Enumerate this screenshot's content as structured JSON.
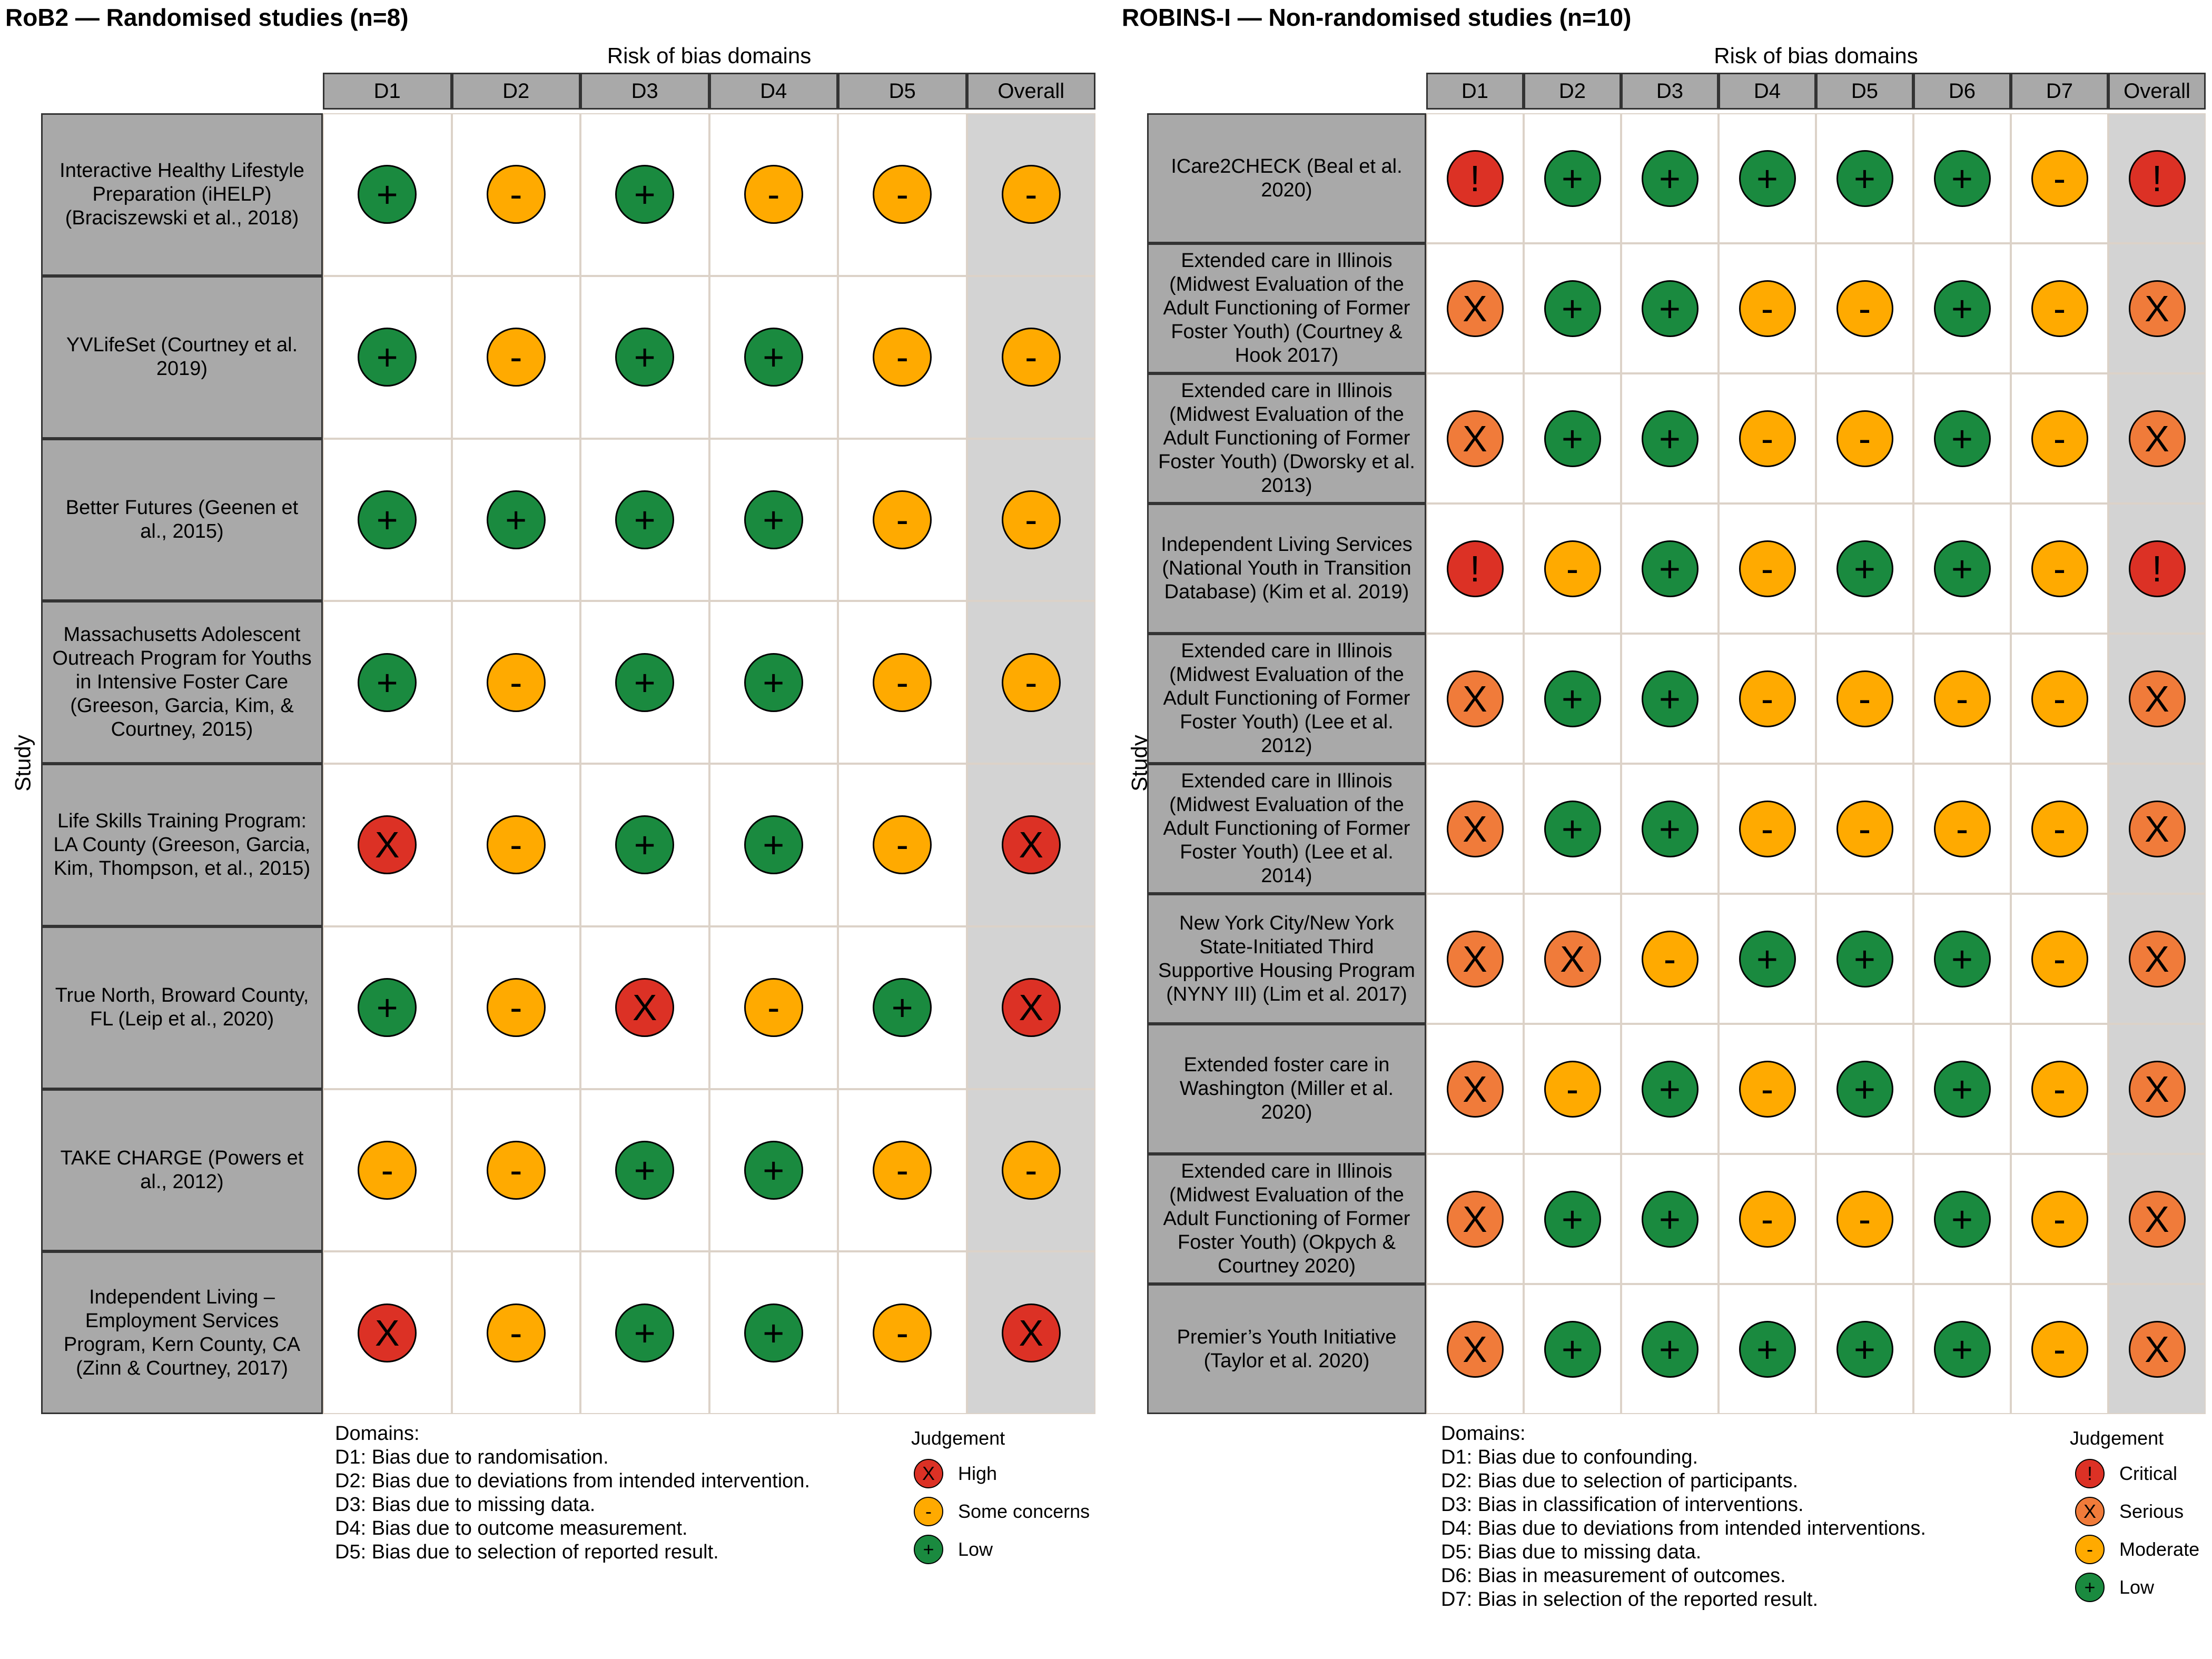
{
  "colors": {
    "high": "#dc3125",
    "critical": "#dc3125",
    "serious": "#f07b3a",
    "some": "#ffaa00",
    "moderate": "#ffaa00",
    "low": "#1a8a3f"
  },
  "chart_data": [
    {
      "type": "table",
      "title": "RoB2 — Randomised studies (n=8)",
      "header_title": "Risk of bias domains",
      "ylabel": "Study",
      "columns": [
        "D1",
        "D2",
        "D3",
        "D4",
        "D5",
        "Overall"
      ],
      "rows": [
        {
          "study": "Interactive Healthy Lifestyle Preparation (iHELP) (Braciszewski et al., 2018)",
          "judgements": [
            "low",
            "some",
            "low",
            "some",
            "some",
            "some"
          ]
        },
        {
          "study": "YVLifeSet (Courtney et al. 2019)",
          "judgements": [
            "low",
            "some",
            "low",
            "low",
            "some",
            "some"
          ]
        },
        {
          "study": "Better Futures (Geenen et al., 2015)",
          "judgements": [
            "low",
            "low",
            "low",
            "low",
            "some",
            "some"
          ]
        },
        {
          "study": "Massachusetts Adolescent Outreach Program for Youths in Intensive Foster Care (Greeson, Garcia, Kim, & Courtney, 2015)",
          "judgements": [
            "low",
            "some",
            "low",
            "low",
            "some",
            "some"
          ]
        },
        {
          "study": "Life Skills Training Program: LA County (Greeson, Garcia, Kim, Thompson, et al., 2015)",
          "judgements": [
            "high",
            "some",
            "low",
            "low",
            "some",
            "high"
          ]
        },
        {
          "study": "True North, Broward County, FL (Leip et al., 2020)",
          "judgements": [
            "low",
            "some",
            "high",
            "some",
            "low",
            "high"
          ]
        },
        {
          "study": "TAKE CHARGE (Powers et al., 2012)",
          "judgements": [
            "some",
            "some",
            "low",
            "low",
            "some",
            "some"
          ]
        },
        {
          "study": "Independent Living – Employment Services Program, Kern County, CA (Zinn & Courtney, 2017)",
          "judgements": [
            "high",
            "some",
            "low",
            "low",
            "some",
            "high"
          ]
        }
      ],
      "symbols": {
        "high": "X",
        "some": "-",
        "low": "+"
      },
      "domains_heading": "Domains:",
      "domains": [
        "D1: Bias due to randomisation.",
        "D2: Bias due to deviations from intended intervention.",
        "D3: Bias due to missing data.",
        "D4: Bias due to outcome measurement.",
        "D5: Bias due to selection of reported result."
      ],
      "legend_title": "Judgement",
      "legend": [
        {
          "key": "high",
          "label": "High"
        },
        {
          "key": "some",
          "label": "Some concerns"
        },
        {
          "key": "low",
          "label": "Low"
        }
      ]
    },
    {
      "type": "table",
      "title": "ROBINS-I — Non-randomised studies (n=10)",
      "header_title": "Risk of bias domains",
      "ylabel": "Study",
      "columns": [
        "D1",
        "D2",
        "D3",
        "D4",
        "D5",
        "D6",
        "D7",
        "Overall"
      ],
      "rows": [
        {
          "study": "ICare2CHECK (Beal et al. 2020)",
          "judgements": [
            "critical",
            "low",
            "low",
            "low",
            "low",
            "low",
            "moderate",
            "critical"
          ]
        },
        {
          "study": "Extended care in Illinois (Midwest Evaluation of the Adult Functioning of Former Foster Youth) (Courtney & Hook 2017)",
          "judgements": [
            "serious",
            "low",
            "low",
            "moderate",
            "moderate",
            "low",
            "moderate",
            "serious"
          ]
        },
        {
          "study": "Extended care in Illinois (Midwest Evaluation of the Adult Functioning of Former Foster Youth) (Dworsky et al. 2013)",
          "judgements": [
            "serious",
            "low",
            "low",
            "moderate",
            "moderate",
            "low",
            "moderate",
            "serious"
          ]
        },
        {
          "study": "Independent Living Services (National Youth in Transition Database) (Kim et al. 2019)",
          "judgements": [
            "critical",
            "moderate",
            "low",
            "moderate",
            "low",
            "low",
            "moderate",
            "critical"
          ]
        },
        {
          "study": "Extended care in Illinois (Midwest Evaluation of the Adult Functioning of Former Foster Youth) (Lee et al. 2012)",
          "judgements": [
            "serious",
            "low",
            "low",
            "moderate",
            "moderate",
            "moderate",
            "moderate",
            "serious"
          ]
        },
        {
          "study": "Extended care in Illinois (Midwest Evaluation of the Adult Functioning of Former Foster Youth) (Lee et al. 2014)",
          "judgements": [
            "serious",
            "low",
            "low",
            "moderate",
            "moderate",
            "moderate",
            "moderate",
            "serious"
          ]
        },
        {
          "study": "New York City/New York State-Initiated Third Supportive Housing Program (NYNY III) (Lim et al. 2017)",
          "judgements": [
            "serious",
            "serious",
            "moderate",
            "low",
            "low",
            "low",
            "moderate",
            "serious"
          ]
        },
        {
          "study": "Extended foster care in Washington (Miller et al. 2020)",
          "judgements": [
            "serious",
            "moderate",
            "low",
            "moderate",
            "low",
            "low",
            "moderate",
            "serious"
          ]
        },
        {
          "study": "Extended care in Illinois (Midwest Evaluation of the Adult Functioning of Former Foster Youth) (Okpych & Courtney 2020)",
          "judgements": [
            "serious",
            "low",
            "low",
            "moderate",
            "moderate",
            "low",
            "moderate",
            "serious"
          ]
        },
        {
          "study": "Premier’s Youth Initiative (Taylor et al. 2020)",
          "judgements": [
            "serious",
            "low",
            "low",
            "low",
            "low",
            "low",
            "moderate",
            "serious"
          ]
        }
      ],
      "symbols": {
        "critical": "!",
        "serious": "X",
        "moderate": "-",
        "low": "+"
      },
      "domains_heading": "Domains:",
      "domains": [
        "D1: Bias due to confounding.",
        "D2: Bias due to selection of participants.",
        "D3: Bias in classification of interventions.",
        "D4: Bias due to deviations from intended interventions.",
        "D5: Bias due to missing data.",
        "D6: Bias in measurement of outcomes.",
        "D7: Bias in selection of the reported result."
      ],
      "legend_title": "Judgement",
      "legend": [
        {
          "key": "critical",
          "label": "Critical"
        },
        {
          "key": "serious",
          "label": "Serious"
        },
        {
          "key": "moderate",
          "label": "Moderate"
        },
        {
          "key": "low",
          "label": "Low"
        }
      ]
    }
  ]
}
